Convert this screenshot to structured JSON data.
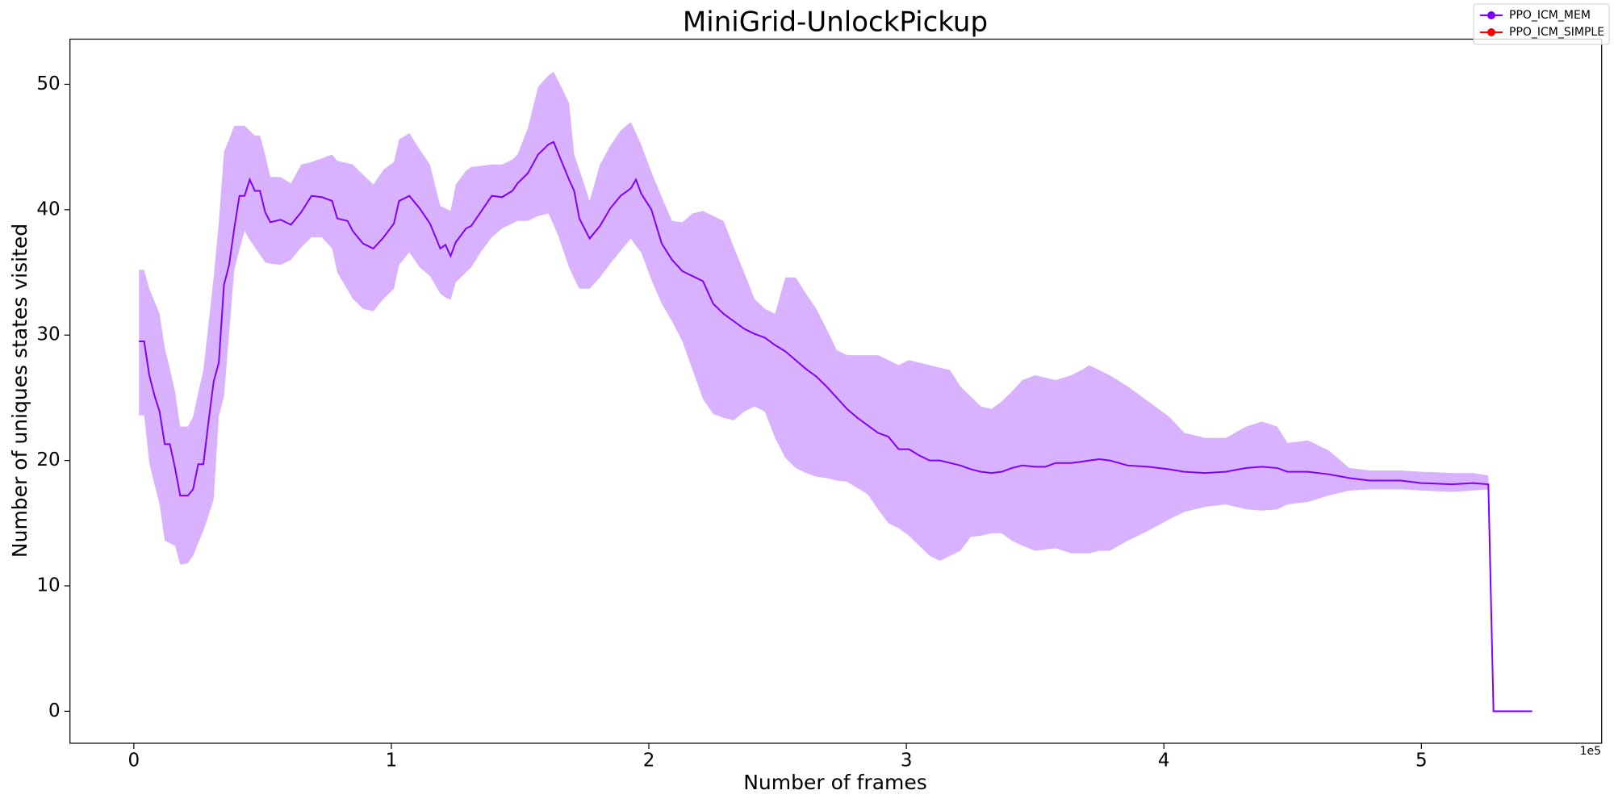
{
  "chart_data": {
    "type": "line",
    "title": "MiniGrid-UnlockPickup",
    "xlabel": "Number of frames",
    "ylabel": "Number of uniques states visited",
    "x_offset_label": "1e5",
    "xlim": [
      -0.248,
      5.7
    ],
    "ylim": [
      -2.55,
      53.6
    ],
    "xticks": [
      0,
      1,
      2,
      3,
      4,
      5
    ],
    "yticks": [
      0,
      10,
      20,
      30,
      40,
      50
    ],
    "grid": false,
    "legend": "upper right",
    "x": [
      0.02,
      0.04,
      0.06,
      0.08,
      0.1,
      0.12,
      0.14,
      0.16,
      0.18,
      0.21,
      0.23,
      0.25,
      0.27,
      0.29,
      0.31,
      0.33,
      0.35,
      0.37,
      0.39,
      0.41,
      0.43,
      0.45,
      0.47,
      0.49,
      0.51,
      0.53,
      0.57,
      0.61,
      0.65,
      0.69,
      0.73,
      0.77,
      0.79,
      0.83,
      0.85,
      0.89,
      0.93,
      0.97,
      1.01,
      1.03,
      1.07,
      1.11,
      1.15,
      1.19,
      1.21,
      1.23,
      1.25,
      1.29,
      1.31,
      1.35,
      1.39,
      1.43,
      1.47,
      1.49,
      1.53,
      1.57,
      1.61,
      1.63,
      1.65,
      1.69,
      1.71,
      1.73,
      1.77,
      1.81,
      1.85,
      1.89,
      1.93,
      1.95,
      1.97,
      2.01,
      2.05,
      2.09,
      2.13,
      2.17,
      2.21,
      2.25,
      2.29,
      2.33,
      2.37,
      2.41,
      2.45,
      2.49,
      2.53,
      2.57,
      2.61,
      2.65,
      2.69,
      2.73,
      2.77,
      2.81,
      2.85,
      2.89,
      2.93,
      2.97,
      3.01,
      3.05,
      3.09,
      3.13,
      3.17,
      3.21,
      3.25,
      3.29,
      3.33,
      3.37,
      3.41,
      3.45,
      3.5,
      3.54,
      3.58,
      3.64,
      3.68,
      3.71,
      3.75,
      3.79,
      3.86,
      3.94,
      4.02,
      4.08,
      4.16,
      4.24,
      4.32,
      4.38,
      4.44,
      4.48,
      4.56,
      4.64,
      4.72,
      4.8,
      4.92,
      5.0,
      5.12,
      5.2,
      5.26,
      5.28,
      5.43
    ],
    "series": [
      {
        "name": "PPO_ICM_MEM",
        "color": "#7f00ff",
        "values": [
          29.5,
          29.5,
          26.8,
          25.2,
          23.9,
          21.3,
          21.3,
          19.4,
          17.2,
          17.2,
          17.7,
          19.7,
          19.7,
          23.1,
          26.3,
          27.8,
          34.0,
          35.6,
          38.5,
          41.1,
          41.1,
          42.4,
          41.5,
          41.5,
          39.8,
          39.0,
          39.2,
          38.8,
          39.8,
          41.1,
          41.0,
          40.7,
          39.3,
          39.1,
          38.3,
          37.3,
          36.9,
          37.8,
          38.9,
          40.7,
          41.1,
          40.1,
          38.9,
          36.9,
          37.2,
          36.3,
          37.4,
          38.5,
          38.7,
          39.9,
          41.1,
          41.0,
          41.5,
          42.1,
          42.9,
          44.4,
          45.2,
          45.4,
          44.4,
          42.4,
          41.5,
          39.3,
          37.7,
          38.7,
          40.1,
          41.1,
          41.7,
          42.4,
          41.3,
          40.0,
          37.3,
          36.0,
          35.1,
          34.7,
          34.3,
          32.5,
          31.7,
          31.1,
          30.5,
          30.1,
          29.8,
          29.2,
          28.7,
          28.0,
          27.3,
          26.7,
          25.9,
          25.0,
          24.1,
          23.4,
          22.8,
          22.2,
          21.9,
          20.9,
          20.9,
          20.4,
          20.0,
          20.0,
          19.8,
          19.6,
          19.3,
          19.1,
          19.0,
          19.1,
          19.4,
          19.6,
          19.5,
          19.5,
          19.8,
          19.8,
          19.9,
          20.0,
          20.1,
          20.0,
          19.6,
          19.5,
          19.3,
          19.1,
          19.0,
          19.1,
          19.4,
          19.5,
          19.4,
          19.1,
          19.1,
          18.9,
          18.6,
          18.4,
          18.4,
          18.2,
          18.1,
          18.2,
          18.1,
          0,
          0
        ],
        "upper": [
          35.2,
          35.2,
          33.7,
          32.7,
          31.7,
          29,
          27.3,
          25.5,
          22.7,
          22.7,
          23.5,
          25.4,
          27.2,
          30.9,
          34.6,
          39,
          44.6,
          45.6,
          46.7,
          46.7,
          46.7,
          46.3,
          45.9,
          45.9,
          44.4,
          42.6,
          42.6,
          42.1,
          43.6,
          43.8,
          44.1,
          44.4,
          43.9,
          43.7,
          43.6,
          42.8,
          42,
          43.2,
          43.8,
          45.6,
          46.1,
          44.8,
          43.6,
          40.3,
          40.1,
          39.9,
          42,
          43.1,
          43.4,
          43.5,
          43.6,
          43.6,
          44,
          44.4,
          46.5,
          49.8,
          50.7,
          51,
          50.2,
          48.5,
          44.4,
          43.2,
          40.7,
          43.6,
          45.1,
          46.3,
          47,
          46.1,
          45.2,
          43,
          41,
          39.1,
          39,
          39.7,
          39.9,
          39.5,
          39.1,
          37,
          35,
          32.9,
          32.1,
          31.7,
          34.6,
          34.6,
          33.3,
          32.1,
          30.5,
          28.8,
          28.4,
          28.4,
          28.4,
          28.4,
          28,
          27.6,
          28,
          27.8,
          27.6,
          27.4,
          27.2,
          25.9,
          25.1,
          24.3,
          24.1,
          24.7,
          25.5,
          26.4,
          26.8,
          26.6,
          26.4,
          26.8,
          27.2,
          27.6,
          27.2,
          26.8,
          25.9,
          24.7,
          23.5,
          22.2,
          21.8,
          21.8,
          22.7,
          23.1,
          22.7,
          21.4,
          21.6,
          20.8,
          19.4,
          19.2,
          19.2,
          19.1,
          19.0,
          19.0,
          18.8,
          0,
          0
        ],
        "lower": [
          23.6,
          23.6,
          19.8,
          18.1,
          16.5,
          13.6,
          13.4,
          13.2,
          11.7,
          11.8,
          12.4,
          13.4,
          14.4,
          15.6,
          16.9,
          23.5,
          25.1,
          30.1,
          35.2,
          36.8,
          38.3,
          37.6,
          37,
          36.4,
          35.8,
          35.7,
          35.6,
          36,
          37,
          37.8,
          37.8,
          36.9,
          35,
          33.6,
          32.9,
          32.1,
          31.9,
          32.9,
          33.7,
          35.6,
          36.6,
          35.4,
          34.7,
          33.3,
          33,
          32.8,
          34.2,
          35,
          35.4,
          36.7,
          37.8,
          38.5,
          38.9,
          39.1,
          39.1,
          39.5,
          39.7,
          38.8,
          37.8,
          35.4,
          34.5,
          33.7,
          33.7,
          34.6,
          35.7,
          36.7,
          37.7,
          37.1,
          36.6,
          34.4,
          32.5,
          31.1,
          29.5,
          27.2,
          24.9,
          23.7,
          23.4,
          23.2,
          23.9,
          24.3,
          23.9,
          21.8,
          20.2,
          19.4,
          19,
          18.7,
          18.6,
          18.4,
          18.3,
          17.8,
          17.3,
          16.1,
          15,
          14.6,
          14,
          13.2,
          12.4,
          12,
          12.4,
          12.8,
          13.9,
          14,
          14.2,
          14.2,
          13.6,
          13.2,
          12.8,
          12.9,
          13,
          12.6,
          12.6,
          12.6,
          12.8,
          12.8,
          13.6,
          14.4,
          15.3,
          15.9,
          16.3,
          16.5,
          16.1,
          16,
          16.1,
          16.5,
          16.7,
          17.2,
          17.6,
          17.7,
          17.7,
          17.6,
          17.5,
          17.6,
          17.7,
          0,
          0
        ]
      },
      {
        "name": "PPO_ICM_SIMPLE",
        "color": "#ff0000"
      }
    ]
  }
}
